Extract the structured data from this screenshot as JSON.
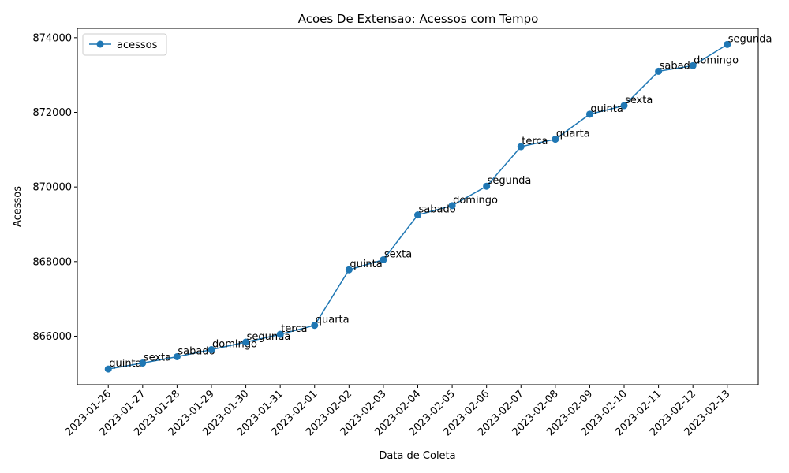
{
  "chart_data": {
    "type": "line",
    "title": "Acoes De Extensao: Acessos com Tempo",
    "xlabel": "Data de Coleta",
    "ylabel": "Acessos",
    "ylim": [
      864700,
      874250
    ],
    "yticks": [
      866000,
      868000,
      870000,
      872000,
      874000
    ],
    "x": [
      "2023-01-26",
      "2023-01-27",
      "2023-01-28",
      "2023-01-29",
      "2023-01-30",
      "2023-01-31",
      "2023-02-01",
      "2023-02-02",
      "2023-02-03",
      "2023-02-04",
      "2023-02-05",
      "2023-02-06",
      "2023-02-07",
      "2023-02-08",
      "2023-02-09",
      "2023-02-10",
      "2023-02-11",
      "2023-02-12",
      "2023-02-13"
    ],
    "legend_position": "top-left",
    "grid": false,
    "series": [
      {
        "name": "acessos",
        "color": "#1f77b4",
        "marker": "circle",
        "values": [
          865120,
          865280,
          865450,
          865640,
          865840,
          866050,
          866290,
          867780,
          868050,
          869250,
          869500,
          870020,
          871080,
          871280,
          871950,
          872180,
          873100,
          873250,
          873820
        ],
        "labels": [
          "quinta",
          "sexta",
          "sabado",
          "domingo",
          "segunda",
          "terca",
          "quarta",
          "quinta",
          "sexta",
          "sabado",
          "domingo",
          "segunda",
          "terca",
          "quarta",
          "quinta",
          "sexta",
          "sabado",
          "domingo",
          "segunda"
        ]
      }
    ]
  }
}
